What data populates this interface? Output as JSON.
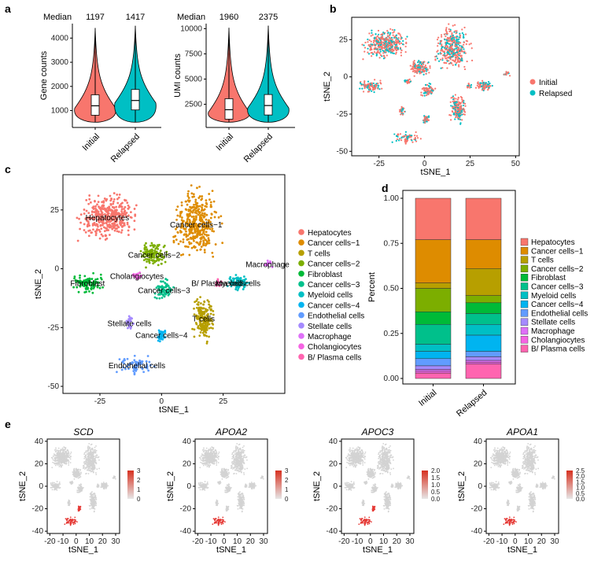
{
  "panels": {
    "a": "a",
    "b": "b",
    "c": "c",
    "d": "d",
    "e": "e"
  },
  "colors": {
    "initial": "#F8766D",
    "relapsed": "#00BFC4",
    "Hepatocytes": "#F8766D",
    "Cancer cells-1": "#DE8C00",
    "T cells": "#B79F00",
    "Cancer cells-2": "#7CAE00",
    "Fibroblast": "#00BA38",
    "Cancer cells-3": "#00C08B",
    "Myeloid cells": "#00BFC4",
    "Cancer cells-4": "#00B4F0",
    "Endothelial cells": "#619CFF",
    "Stellate cells": "#A58AFF",
    "Macrophage": "#DF70F8",
    "Cholangiocytes": "#F564E3",
    "B/ Plasma cells": "#FF64B0"
  },
  "chart_data": [
    {
      "id": "a1",
      "type": "violin",
      "ylabel": "Gene counts",
      "categories": [
        "Initial",
        "Relapsed"
      ],
      "median_label": "Median",
      "medians": [
        1197,
        1417
      ],
      "median_text": [
        "1197",
        "1417"
      ],
      "yticks": [
        1000,
        2000,
        3000,
        4000
      ],
      "ytick_labels": [
        "1000",
        "2000",
        "3000",
        "4000"
      ],
      "ylim": [
        300,
        4600
      ]
    },
    {
      "id": "a2",
      "type": "violin",
      "ylabel": "UMI counts",
      "categories": [
        "Initial",
        "Relapsed"
      ],
      "median_label": "Median",
      "medians": [
        1960,
        2375
      ],
      "median_text": [
        "1960",
        "2375"
      ],
      "yticks": [
        2500,
        5000,
        7500,
        10000
      ],
      "ytick_labels": [
        "2500",
        "5000",
        "7500",
        "10000"
      ],
      "ylim": [
        200,
        10500
      ]
    },
    {
      "id": "b",
      "type": "scatter",
      "xlabel": "tSNE_1",
      "ylabel": "tSNE_2",
      "xticks": [
        -25,
        0,
        25,
        50
      ],
      "xtick_labels": [
        "-25",
        "0",
        "25",
        "50"
      ],
      "yticks": [
        -50,
        -25,
        0,
        25
      ],
      "ytick_labels": [
        "-50",
        "-25",
        "0",
        "25"
      ],
      "xlim": [
        -40,
        52
      ],
      "ylim": [
        -53,
        40
      ],
      "legend": [
        "Initial",
        "Relapsed"
      ]
    },
    {
      "id": "c",
      "type": "scatter",
      "xlabel": "tSNE_1",
      "ylabel": "tSNE_2",
      "xticks": [
        -25,
        0,
        25
      ],
      "xtick_labels": [
        "-25",
        "0",
        "25"
      ],
      "yticks": [
        -50,
        -25,
        0,
        25
      ],
      "ytick_labels": [
        "-50",
        "-25",
        "0",
        "25"
      ],
      "xlim": [
        -40,
        50
      ],
      "ylim": [
        -53,
        40
      ],
      "clusters": [
        {
          "name": "Hepatocytes",
          "cx": -22,
          "cy": 22,
          "label": "Hepatocytes"
        },
        {
          "name": "Cancer cells-1",
          "cx": 14,
          "cy": 19,
          "label": "Cancer cells−1"
        },
        {
          "name": "T cells",
          "cx": 17,
          "cy": -21,
          "label": "T cells"
        },
        {
          "name": "Cancer cells-2",
          "cx": -3,
          "cy": 6,
          "label": "Cancer cells−2"
        },
        {
          "name": "Fibroblast",
          "cx": -30,
          "cy": -6,
          "label": "Fibroblast"
        },
        {
          "name": "Cancer cells-3",
          "cx": 1,
          "cy": -9,
          "label": "Cancer cells−3"
        },
        {
          "name": "Myeloid cells",
          "cx": 31,
          "cy": -6,
          "label": "Myeloid cells"
        },
        {
          "name": "Cancer cells-4",
          "cx": 0,
          "cy": -28,
          "label": "Cancer cells−4"
        },
        {
          "name": "Endothelial cells",
          "cx": -10,
          "cy": -41,
          "label": "Endothelial cells"
        },
        {
          "name": "Stellate cells",
          "cx": -13,
          "cy": -23,
          "label": "Stellate cells"
        },
        {
          "name": "Macrophage",
          "cx": 43,
          "cy": 2,
          "label": "Macrophage"
        },
        {
          "name": "Cholangiocytes",
          "cx": -10,
          "cy": -3,
          "label": "Cholangiocytes"
        },
        {
          "name": "B/ Plasma cells",
          "cx": 23,
          "cy": -6,
          "label": "B/ Plasma cells"
        }
      ],
      "legend": [
        "Hepatocytes",
        "Cancer cells−1",
        "T cells",
        "Cancer cells−2",
        "Fibroblast",
        "Cancer cells−3",
        "Myeloid cells",
        "Cancer cells−4",
        "Endothelial cells",
        "Stellate cells",
        "Macrophage",
        "Cholangiocytes",
        "B/ Plasma cells"
      ]
    },
    {
      "id": "d",
      "type": "stacked-bar",
      "ylabel": "Percent",
      "categories": [
        "Initial",
        "Relapsed"
      ],
      "yticks": [
        0,
        0.25,
        0.5,
        0.75,
        1
      ],
      "ytick_labels": [
        "0.00",
        "0.25",
        "0.50",
        "0.75",
        "1.00"
      ],
      "series": [
        {
          "name": "Hepatocytes",
          "values": [
            0.23,
            0.23
          ]
        },
        {
          "name": "Cancer cells-1",
          "values": [
            0.24,
            0.16
          ]
        },
        {
          "name": "T cells",
          "values": [
            0.03,
            0.15
          ]
        },
        {
          "name": "Cancer cells-2",
          "values": [
            0.13,
            0.04
          ]
        },
        {
          "name": "Fibroblast",
          "values": [
            0.07,
            0.06
          ]
        },
        {
          "name": "Cancer cells-3",
          "values": [
            0.11,
            0.06
          ]
        },
        {
          "name": "Myeloid cells",
          "values": [
            0.04,
            0.06
          ]
        },
        {
          "name": "Cancer cells-4",
          "values": [
            0.04,
            0.09
          ]
        },
        {
          "name": "Endothelial cells",
          "values": [
            0.04,
            0.03
          ]
        },
        {
          "name": "Stellate cells",
          "values": [
            0.02,
            0.02
          ]
        },
        {
          "name": "Macrophage",
          "values": [
            0.01,
            0.01
          ]
        },
        {
          "name": "Cholangiocytes",
          "values": [
            0.01,
            0.01
          ]
        },
        {
          "name": "B/ Plasma cells",
          "values": [
            0.03,
            0.08
          ]
        }
      ],
      "legend": [
        "Hepatocytes",
        "Cancer cells−1",
        "T cells",
        "Cancer cells−2",
        "Fibroblast",
        "Cancer cells−3",
        "Myeloid cells",
        "Cancer cells−4",
        "Endothelial cells",
        "Stellate cells",
        "Macrophage",
        "Cholangiocytes",
        "B/ Plasma cells"
      ]
    },
    {
      "id": "e",
      "type": "scatter-feature",
      "xlabel": "tSNE_1",
      "ylabel": "tSNE_2",
      "xticks": [
        -20,
        -10,
        0,
        10,
        20,
        30
      ],
      "xtick_labels": [
        "-20",
        "-10",
        "0",
        "10",
        "20",
        "30"
      ],
      "yticks": [
        -40,
        -20,
        0,
        20,
        40
      ],
      "ytick_labels": [
        "-40",
        "-20",
        "0",
        "20",
        "40"
      ],
      "xlim": [
        -22,
        33
      ],
      "ylim": [
        -42,
        42
      ],
      "genes": [
        {
          "gene": "SCD",
          "scale": [
            "3",
            "2",
            "1",
            "0"
          ]
        },
        {
          "gene": "APOA2",
          "scale": [
            "3",
            "2",
            "1",
            "0"
          ]
        },
        {
          "gene": "APOC3",
          "scale": [
            "2.0",
            "1.5",
            "1.0",
            "0.5",
            "0.0"
          ]
        },
        {
          "gene": "APOA1",
          "scale": [
            "2.5",
            "2.0",
            "1.5",
            "1.0",
            "0.5",
            "0.0"
          ]
        }
      ]
    }
  ]
}
